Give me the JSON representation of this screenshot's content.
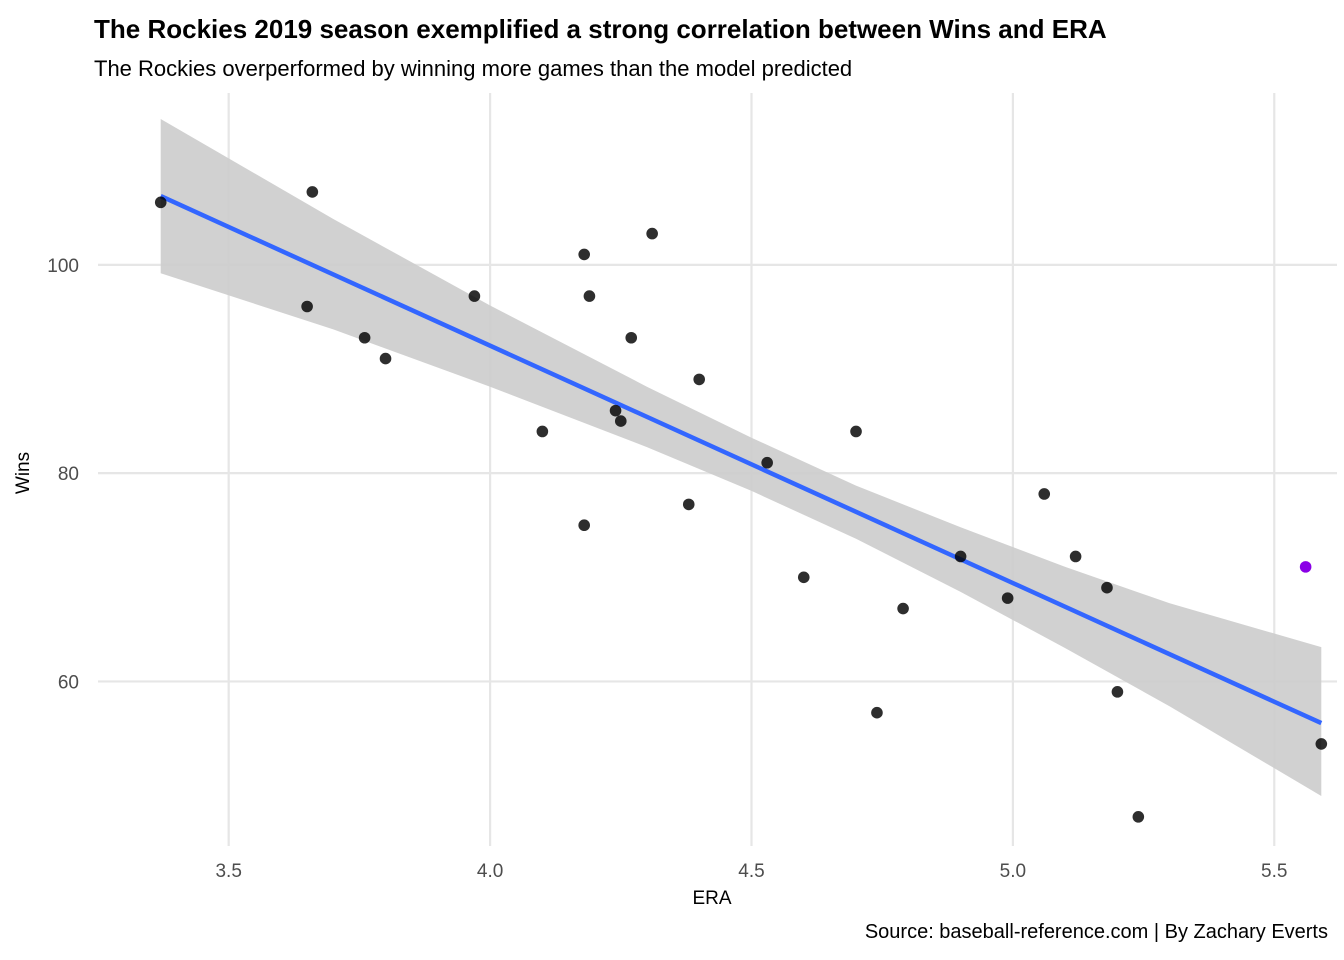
{
  "chart_data": {
    "type": "scatter",
    "title": "The Rockies 2019 season exemplified a strong correlation between Wins and ERA",
    "subtitle": "The Rockies overperformed by winning more games than the model predicted",
    "caption": "Source: baseball-reference.com | By Zachary Everts",
    "xlabel": "ERA",
    "ylabel": "Wins",
    "xlim": [
      3.25,
      5.62
    ],
    "ylim": [
      44.2,
      116.5
    ],
    "xticks": [
      3.5,
      4.0,
      4.5,
      5.0,
      5.5
    ],
    "xtick_labels": [
      "3.5",
      "4.0",
      "4.5",
      "5.0",
      "5.5"
    ],
    "yticks": [
      60,
      80,
      100
    ],
    "ytick_labels": [
      "60",
      "80",
      "100"
    ],
    "grid": true,
    "points": [
      {
        "x": 3.37,
        "y": 106
      },
      {
        "x": 3.65,
        "y": 96
      },
      {
        "x": 3.66,
        "y": 107
      },
      {
        "x": 3.76,
        "y": 93
      },
      {
        "x": 3.8,
        "y": 91
      },
      {
        "x": 3.97,
        "y": 97
      },
      {
        "x": 4.1,
        "y": 84
      },
      {
        "x": 4.18,
        "y": 101
      },
      {
        "x": 4.18,
        "y": 75
      },
      {
        "x": 4.19,
        "y": 97
      },
      {
        "x": 4.24,
        "y": 86
      },
      {
        "x": 4.25,
        "y": 85
      },
      {
        "x": 4.27,
        "y": 93
      },
      {
        "x": 4.31,
        "y": 103
      },
      {
        "x": 4.38,
        "y": 77
      },
      {
        "x": 4.4,
        "y": 89
      },
      {
        "x": 4.53,
        "y": 81
      },
      {
        "x": 4.6,
        "y": 70
      },
      {
        "x": 4.7,
        "y": 84
      },
      {
        "x": 4.74,
        "y": 57
      },
      {
        "x": 4.79,
        "y": 67
      },
      {
        "x": 4.9,
        "y": 72
      },
      {
        "x": 4.99,
        "y": 68
      },
      {
        "x": 5.06,
        "y": 78
      },
      {
        "x": 5.12,
        "y": 72
      },
      {
        "x": 5.18,
        "y": 69
      },
      {
        "x": 5.2,
        "y": 59
      },
      {
        "x": 5.24,
        "y": 47
      },
      {
        "x": 5.59,
        "y": 54
      }
    ],
    "highlight_point": {
      "x": 5.56,
      "y": 71,
      "color": "#8a00e6"
    },
    "fit": {
      "x": [
        3.37,
        3.7,
        4.0,
        4.3,
        4.5,
        4.7,
        4.9,
        5.1,
        5.3,
        5.59
      ],
      "y": [
        106.6,
        99.1,
        92.2,
        85.4,
        80.8,
        76.2,
        71.7,
        67.1,
        62.6,
        56.0
      ],
      "lower": [
        99.2,
        93.8,
        88.3,
        82.5,
        78.3,
        73.7,
        68.6,
        63.2,
        57.6,
        49.0
      ],
      "upper": [
        114.0,
        104.4,
        96.1,
        88.3,
        83.4,
        78.8,
        74.8,
        71.0,
        67.5,
        63.3
      ],
      "color": "#3366ff",
      "band_color": "#cccccc"
    },
    "point_color": "#000000",
    "grid_color": "#e6e6e6"
  }
}
